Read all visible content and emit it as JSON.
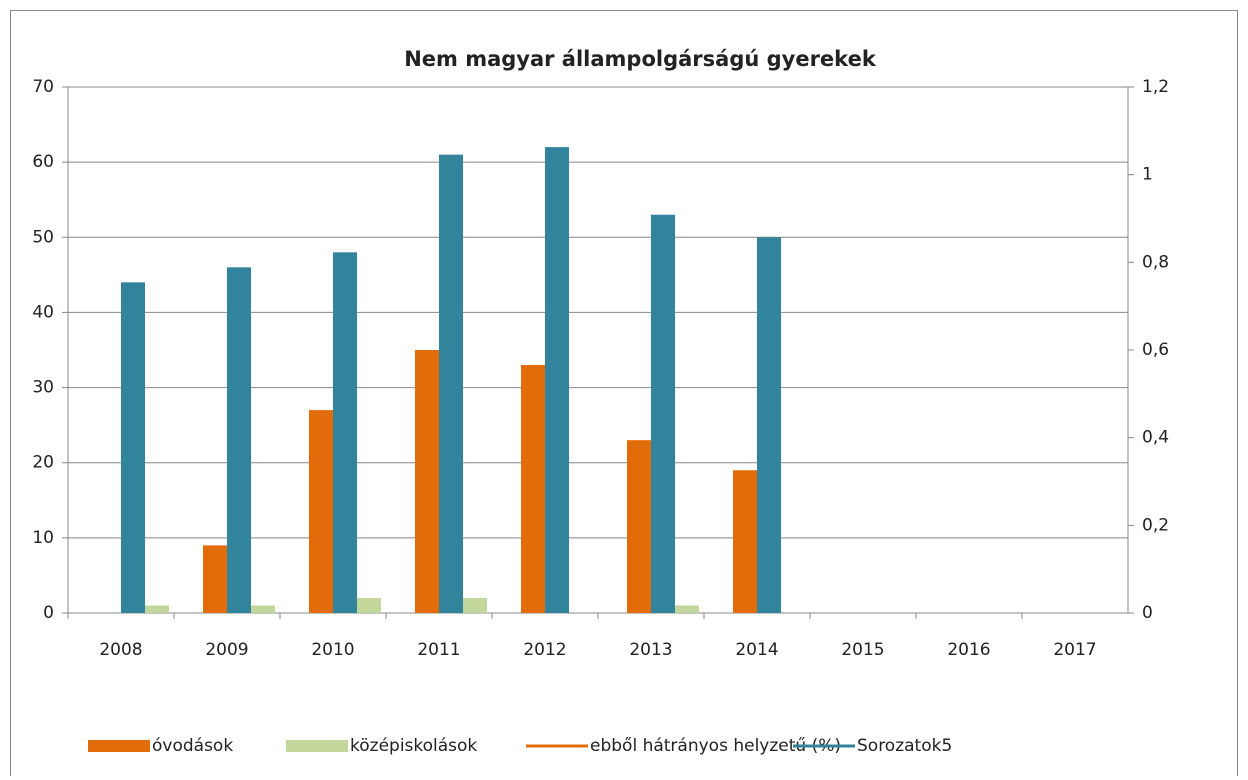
{
  "chart_data": {
    "type": "bar",
    "title": "Nem magyar állampolgárságú gyerekek",
    "categories": [
      "2008",
      "2009",
      "2010",
      "2011",
      "2012",
      "2013",
      "2014",
      "2015",
      "2016",
      "2017"
    ],
    "series": [
      {
        "name": "óvodások",
        "color": "#e36c0a",
        "kind": "bar",
        "values": [
          0,
          9,
          27,
          35,
          33,
          23,
          19,
          null,
          null,
          null
        ]
      },
      {
        "name": "középiskolások",
        "color": "#c3d69b",
        "kind": "bar",
        "values": [
          1,
          1,
          2,
          2,
          0,
          1,
          0,
          null,
          null,
          null
        ]
      },
      {
        "name": "ebből hátrányos helyzetű (%)",
        "color": "#e36c0a",
        "kind": "line",
        "axis": "y2",
        "values": [
          null,
          null,
          null,
          null,
          null,
          null,
          null,
          null,
          null,
          null
        ]
      },
      {
        "name": "Sorozatok5",
        "color": "#31849b",
        "kind": "bar",
        "legend_marker": "line",
        "values": [
          44,
          46,
          48,
          61,
          62,
          53,
          50,
          null,
          null,
          null
        ]
      }
    ],
    "ylim": [
      0,
      70
    ],
    "yticks": [
      0,
      10,
      20,
      30,
      40,
      50,
      60,
      70
    ],
    "y2lim": [
      0,
      1.2
    ],
    "y2ticks": [
      0,
      {
        "value": 0.2,
        "label": "0,2"
      },
      {
        "value": 0.4,
        "label": "0,4"
      },
      {
        "value": 0.6,
        "label": "0,6"
      },
      {
        "value": 0.8,
        "label": "0,8"
      },
      1,
      {
        "value": 1.2,
        "label": "1,2"
      }
    ],
    "grid": true,
    "legend": "bottom"
  }
}
